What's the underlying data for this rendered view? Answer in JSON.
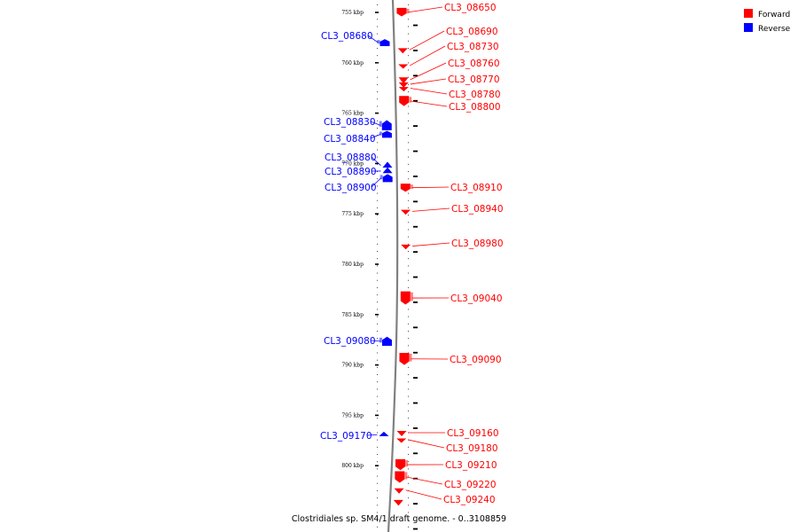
{
  "legend": {
    "forward_label": "Forward",
    "reverse_label": "Reverse",
    "forward_color": "#ff0000",
    "reverse_color": "#0000ff",
    "forward_light_color": "#ff8080",
    "reverse_light_color": "#8080ff"
  },
  "caption": "Clostridiales sp. SM4/1 draft genome. - 0..3108859",
  "ticks": [
    {
      "kbp": 755,
      "label": "755 kbp"
    },
    {
      "kbp": 760,
      "label": "760 kbp"
    },
    {
      "kbp": 765,
      "label": "765 kbp"
    },
    {
      "kbp": 770,
      "label": "770 kbp"
    },
    {
      "kbp": 775,
      "label": "775 kbp"
    },
    {
      "kbp": 780,
      "label": "780 kbp"
    },
    {
      "kbp": 785,
      "label": "785 kbp"
    },
    {
      "kbp": 790,
      "label": "790 kbp"
    },
    {
      "kbp": 795,
      "label": "795 kbp"
    },
    {
      "kbp": 800,
      "label": "800 kbp"
    }
  ],
  "genes": [
    {
      "name": "CL3_08650",
      "strand": "forward",
      "start_kbp": 754.55,
      "end_kbp": 755.4
    },
    {
      "name": "CL3_08680",
      "strand": "reverse",
      "start_kbp": 757.65,
      "end_kbp": 758.35
    },
    {
      "name": "CL3_08690",
      "strand": "forward",
      "start_kbp": 758.55,
      "end_kbp": 758.9
    },
    {
      "name": "CL3_08730",
      "strand": "forward",
      "start_kbp": 760.15,
      "end_kbp": 760.4
    },
    {
      "name": "CL3_08760",
      "strand": "forward",
      "start_kbp": 761.45,
      "end_kbp": 761.9
    },
    {
      "name": "CL3_08770",
      "strand": "forward",
      "start_kbp": 761.95,
      "end_kbp": 762.3
    },
    {
      "name": "CL3_08780",
      "strand": "forward",
      "start_kbp": 762.4,
      "end_kbp": 762.65
    },
    {
      "name": "CL3_08800",
      "strand": "forward",
      "start_kbp": 763.3,
      "end_kbp": 764.3
    },
    {
      "name": "CL3_08830",
      "strand": "reverse",
      "start_kbp": 765.7,
      "end_kbp": 766.7
    },
    {
      "name": "CL3_08840",
      "strand": "reverse",
      "start_kbp": 766.75,
      "end_kbp": 767.45
    },
    {
      "name": "CL3_08880",
      "strand": "reverse",
      "start_kbp": 770.0,
      "end_kbp": 770.4
    },
    {
      "name": "CL3_08890",
      "strand": "reverse",
      "start_kbp": 770.55,
      "end_kbp": 770.95
    },
    {
      "name": "CL3_08900",
      "strand": "reverse",
      "start_kbp": 771.05,
      "end_kbp": 771.85
    },
    {
      "name": "CL3_08910",
      "strand": "forward",
      "start_kbp": 772.0,
      "end_kbp": 772.8
    },
    {
      "name": "CL3_08940",
      "strand": "forward",
      "start_kbp": 774.6,
      "end_kbp": 774.9
    },
    {
      "name": "CL3_08980",
      "strand": "forward",
      "start_kbp": 778.05,
      "end_kbp": 778.35
    },
    {
      "name": "CL3_09040",
      "strand": "forward",
      "start_kbp": 782.7,
      "end_kbp": 784.0
    },
    {
      "name": "CL3_09080",
      "strand": "reverse",
      "start_kbp": 787.2,
      "end_kbp": 788.1
    },
    {
      "name": "CL3_09090",
      "strand": "forward",
      "start_kbp": 788.8,
      "end_kbp": 790.0
    },
    {
      "name": "CL3_09160",
      "strand": "forward",
      "start_kbp": 796.55,
      "end_kbp": 796.9
    },
    {
      "name": "CL3_09170",
      "strand": "reverse",
      "start_kbp": 796.8,
      "end_kbp": 797.05
    },
    {
      "name": "CL3_09180",
      "strand": "forward",
      "start_kbp": 797.3,
      "end_kbp": 797.55
    },
    {
      "name": "CL3_09210",
      "strand": "forward",
      "start_kbp": 799.35,
      "end_kbp": 800.45
    },
    {
      "name": "CL3_09220",
      "strand": "forward",
      "start_kbp": 800.55,
      "end_kbp": 801.7
    },
    {
      "name": "CL3_09240",
      "strand": "forward",
      "start_kbp": 802.25,
      "end_kbp": 802.6
    },
    {
      "name": "",
      "strand": "forward",
      "start_kbp": 803.4,
      "end_kbp": 803.8
    }
  ]
}
